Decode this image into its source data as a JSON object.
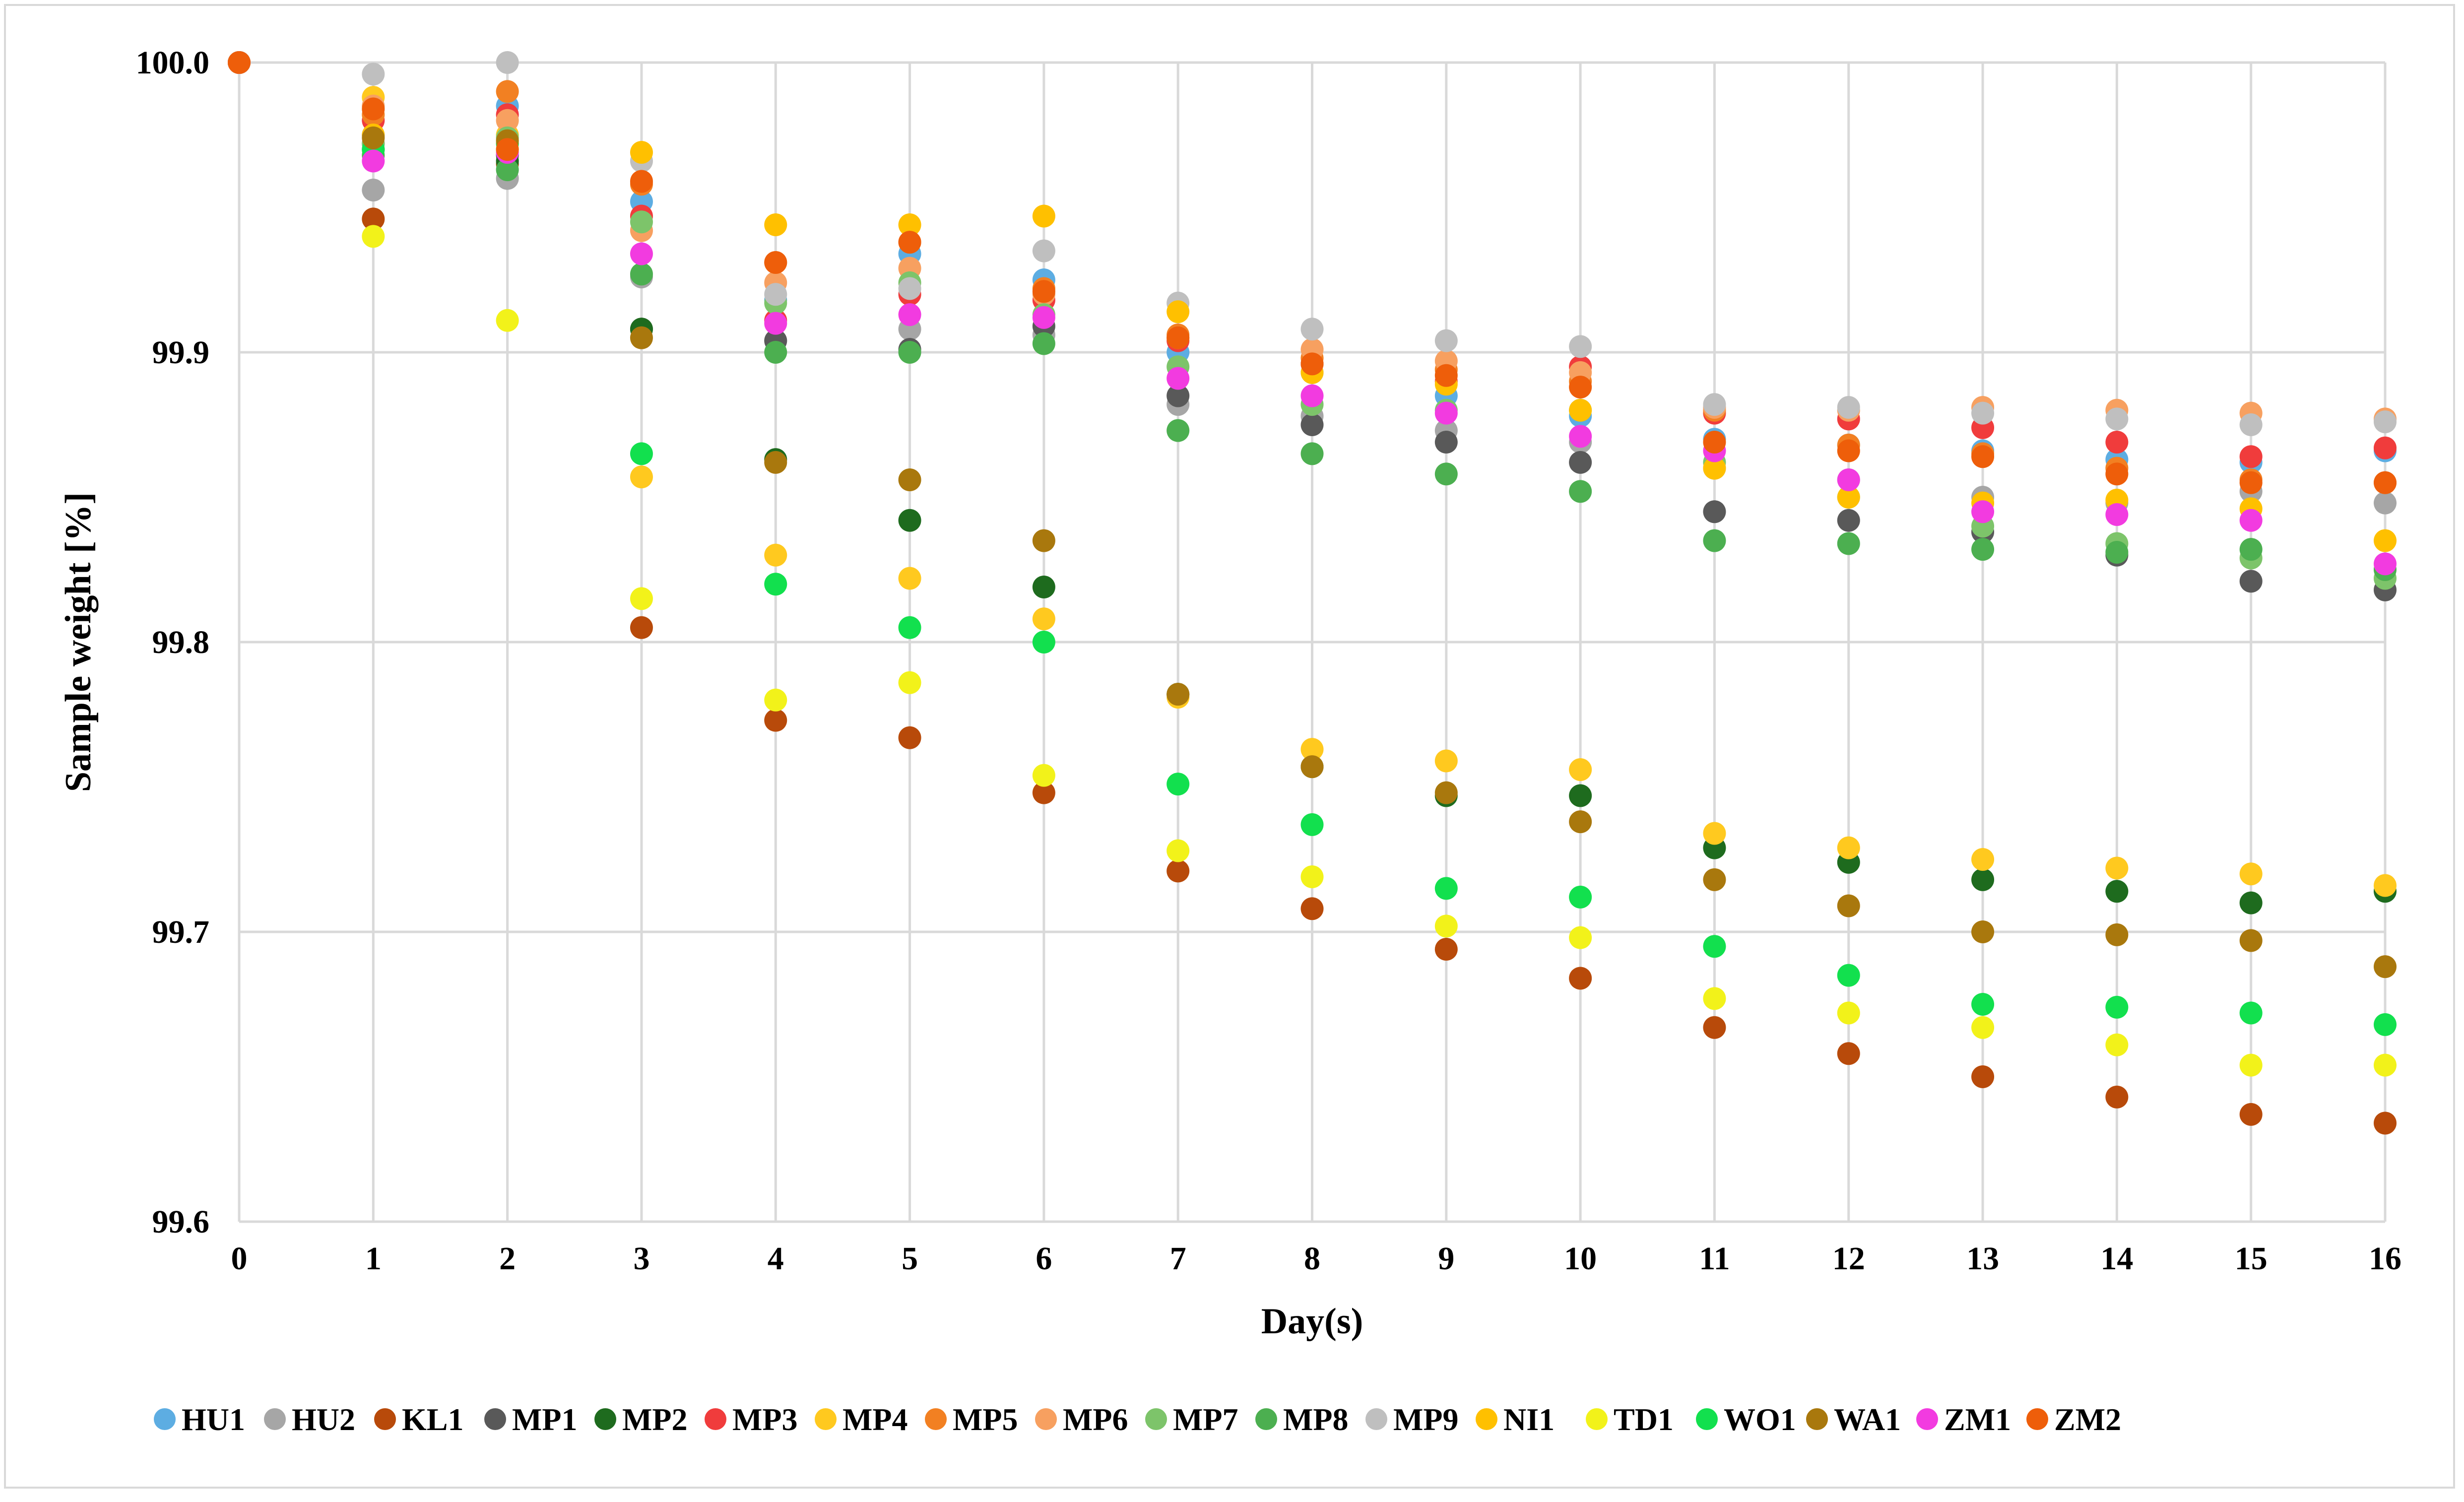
{
  "chart_data": {
    "type": "scatter",
    "title": "",
    "xlabel": "Day(s)",
    "ylabel": "Sample weight [%]",
    "xlim": [
      0,
      16
    ],
    "ylim": [
      99.6,
      100.0
    ],
    "x_ticks": [
      "0",
      "1",
      "2",
      "3",
      "4",
      "5",
      "6",
      "7",
      "8",
      "9",
      "10",
      "11",
      "12",
      "13",
      "14",
      "15",
      "16"
    ],
    "y_ticks": [
      "99.6",
      "99.7",
      "99.8",
      "99.9",
      "100.0"
    ],
    "grid": true,
    "legend_position": "bottom",
    "x": [
      0,
      1,
      2,
      3,
      4,
      5,
      6,
      7,
      8,
      9,
      10,
      11,
      12,
      13,
      14,
      15,
      16
    ],
    "series": [
      {
        "name": "HU1",
        "color": "#5DADE2",
        "values": [
          100.0,
          99.975,
          99.985,
          99.952,
          99.918,
          99.934,
          99.925,
          99.9,
          99.893,
          99.885,
          99.878,
          99.87,
          99.868,
          99.866,
          99.863,
          99.862,
          99.866
        ]
      },
      {
        "name": "HU2",
        "color": "#A6A6A6",
        "values": [
          100.0,
          99.956,
          99.96,
          99.926,
          99.904,
          99.908,
          99.906,
          99.882,
          99.878,
          99.873,
          99.869,
          99.86,
          99.856,
          99.85,
          99.848,
          99.852,
          99.848
        ]
      },
      {
        "name": "KL1",
        "color": "#B84A0A",
        "values": [
          100.0,
          99.946,
          99.965,
          99.805,
          99.773,
          99.767,
          99.748,
          99.721,
          99.708,
          99.694,
          99.684,
          99.667,
          99.658,
          99.65,
          99.643,
          99.637,
          99.634
        ]
      },
      {
        "name": "MP1",
        "color": "#595959",
        "values": [
          100.0,
          99.972,
          99.968,
          99.908,
          99.904,
          99.901,
          99.909,
          99.885,
          99.875,
          99.869,
          99.862,
          99.845,
          99.842,
          99.838,
          99.83,
          99.821,
          99.818
        ]
      },
      {
        "name": "MP2",
        "color": "#1E6B1E",
        "values": [
          100.0,
          99.97,
          99.966,
          99.908,
          99.863,
          99.842,
          99.819,
          99.782,
          99.757,
          99.747,
          99.747,
          99.729,
          99.724,
          99.718,
          99.714,
          99.71,
          99.714
        ]
      },
      {
        "name": "MP3",
        "color": "#F03C3C",
        "values": [
          100.0,
          99.98,
          99.982,
          99.947,
          99.911,
          99.92,
          99.918,
          99.904,
          99.896,
          99.89,
          99.895,
          99.879,
          99.877,
          99.874,
          99.869,
          99.864,
          99.867
        ]
      },
      {
        "name": "MP4",
        "color": "#FFC91F",
        "values": [
          100.0,
          99.988,
          99.975,
          99.857,
          99.83,
          99.822,
          99.808,
          99.781,
          99.763,
          99.759,
          99.756,
          99.734,
          99.729,
          99.725,
          99.722,
          99.72,
          99.716
        ]
      },
      {
        "name": "MP5",
        "color": "#F28022",
        "values": [
          100.0,
          99.982,
          99.99,
          99.958,
          99.931,
          99.938,
          99.922,
          99.906,
          99.898,
          99.894,
          99.89,
          99.88,
          99.868,
          99.865,
          99.86,
          99.856,
          99.855
        ]
      },
      {
        "name": "MP6",
        "color": "#F7A060",
        "values": [
          100.0,
          99.985,
          99.98,
          99.942,
          99.924,
          99.929,
          99.92,
          99.905,
          99.901,
          99.897,
          99.893,
          99.881,
          99.88,
          99.881,
          99.88,
          99.879,
          99.877
        ]
      },
      {
        "name": "MP7",
        "color": "#7DC46A",
        "values": [
          100.0,
          99.972,
          99.974,
          99.945,
          99.917,
          99.924,
          99.913,
          99.895,
          99.882,
          99.88,
          99.88,
          99.862,
          99.85,
          99.84,
          99.834,
          99.829,
          99.822
        ]
      },
      {
        "name": "MP8",
        "color": "#4CAF50",
        "values": [
          100.0,
          99.968,
          99.963,
          99.927,
          99.9,
          99.9,
          99.903,
          99.873,
          99.865,
          99.858,
          99.852,
          99.835,
          99.834,
          99.832,
          99.831,
          99.832,
          99.825
        ]
      },
      {
        "name": "MP9",
        "color": "#BFBFBF",
        "values": [
          100.0,
          99.996,
          100.0,
          99.966,
          99.92,
          99.922,
          99.935,
          99.917,
          99.908,
          99.904,
          99.902,
          99.882,
          99.881,
          99.879,
          99.877,
          99.875,
          99.876
        ]
      },
      {
        "name": "NI1",
        "color": "#FFC000",
        "values": [
          100.0,
          99.975,
          99.97,
          99.969,
          99.944,
          99.944,
          99.947,
          99.914,
          99.893,
          99.889,
          99.88,
          99.86,
          99.85,
          99.848,
          99.849,
          99.846,
          99.835
        ]
      },
      {
        "name": "TD1",
        "color": "#F2F21A",
        "values": [
          100.0,
          99.94,
          99.911,
          99.815,
          99.78,
          99.786,
          99.754,
          99.728,
          99.719,
          99.702,
          99.698,
          99.677,
          99.672,
          99.667,
          99.661,
          99.654,
          99.654
        ]
      },
      {
        "name": "WO1",
        "color": "#12E04E",
        "values": [
          100.0,
          99.97,
          99.972,
          99.865,
          99.82,
          99.805,
          99.8,
          99.751,
          99.737,
          99.715,
          99.712,
          99.695,
          99.685,
          99.675,
          99.674,
          99.672,
          99.668
        ]
      },
      {
        "name": "WA1",
        "color": "#A9780D",
        "values": [
          100.0,
          99.974,
          99.973,
          99.905,
          99.862,
          99.856,
          99.835,
          99.782,
          99.757,
          99.748,
          99.738,
          99.718,
          99.709,
          99.7,
          99.699,
          99.697,
          99.688
        ]
      },
      {
        "name": "ZM1",
        "color": "#F23BE0",
        "values": [
          100.0,
          99.966,
          99.969,
          99.934,
          99.91,
          99.913,
          99.912,
          99.891,
          99.885,
          99.879,
          99.871,
          99.866,
          99.856,
          99.845,
          99.844,
          99.842,
          99.827
        ]
      },
      {
        "name": "ZM2",
        "color": "#EE5E0A",
        "values": [
          100.0,
          99.984,
          99.97,
          99.959,
          99.931,
          99.938,
          99.921,
          99.905,
          99.896,
          99.892,
          99.888,
          99.869,
          99.866,
          99.864,
          99.858,
          99.855,
          99.855
        ]
      }
    ]
  }
}
